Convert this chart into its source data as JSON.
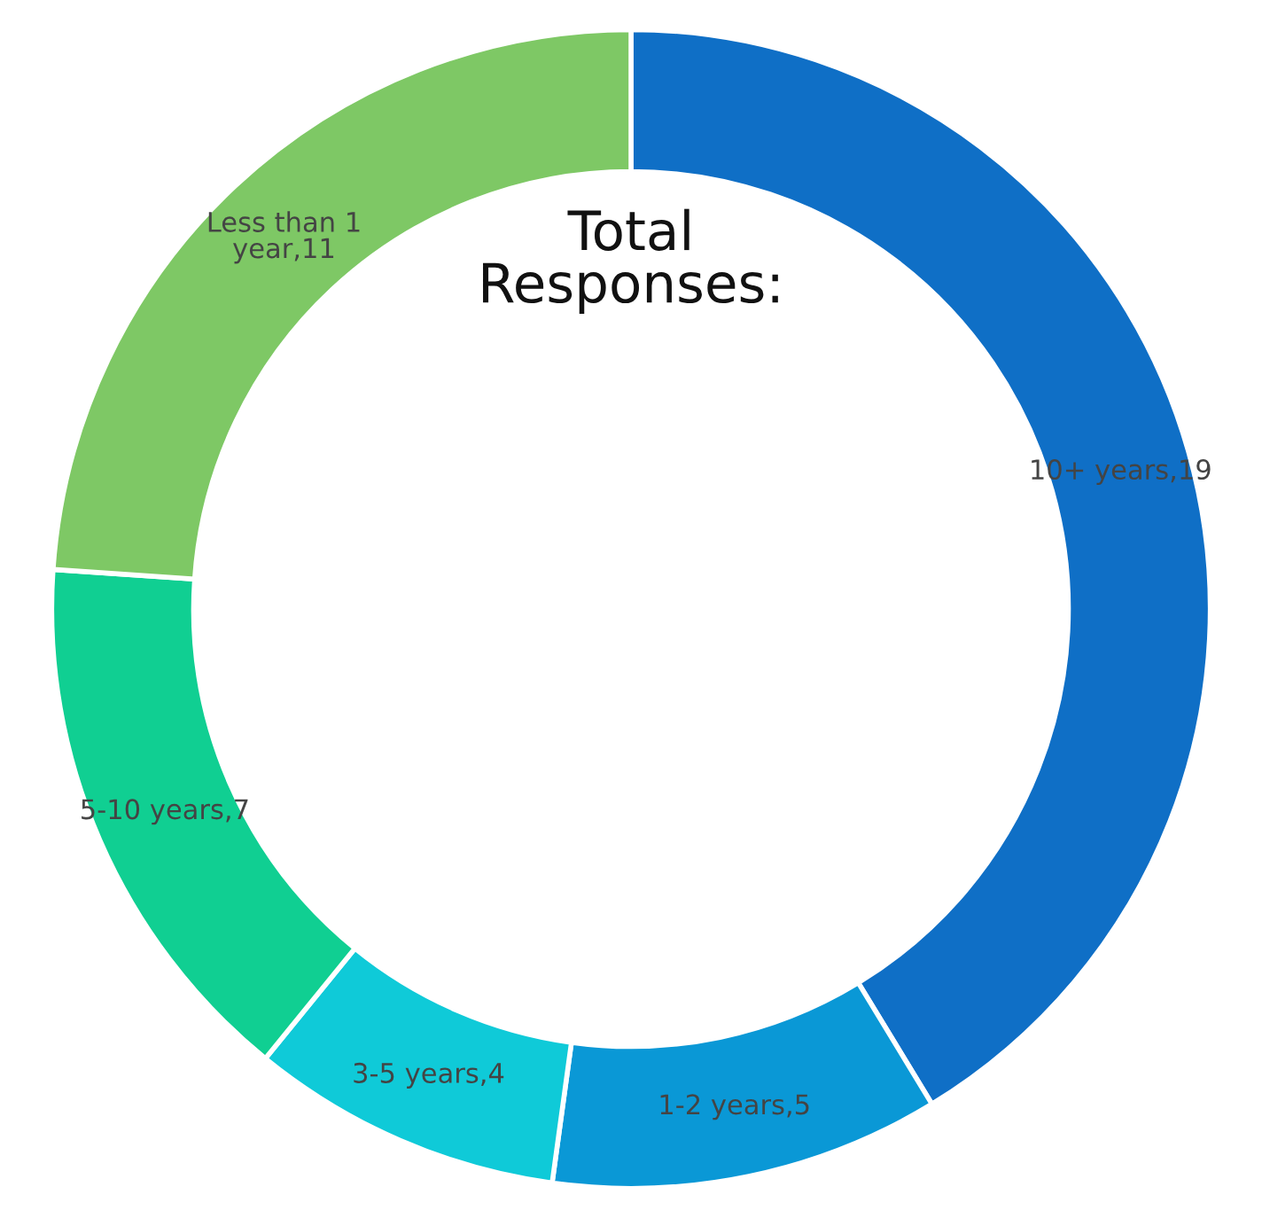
{
  "chart_data": {
    "type": "donut",
    "title": "Total Responses:",
    "categories": [
      "10+ years,19",
      "1-2 years,5",
      "3-5 years,4",
      "5-10 years,7",
      "Less than 1 year,11"
    ],
    "values": [
      19,
      5,
      4,
      7,
      11
    ],
    "colors": [
      "#0f6fc6",
      "#0a98d6",
      "#0fcad8",
      "#10cf92",
      "#7ec865"
    ]
  }
}
